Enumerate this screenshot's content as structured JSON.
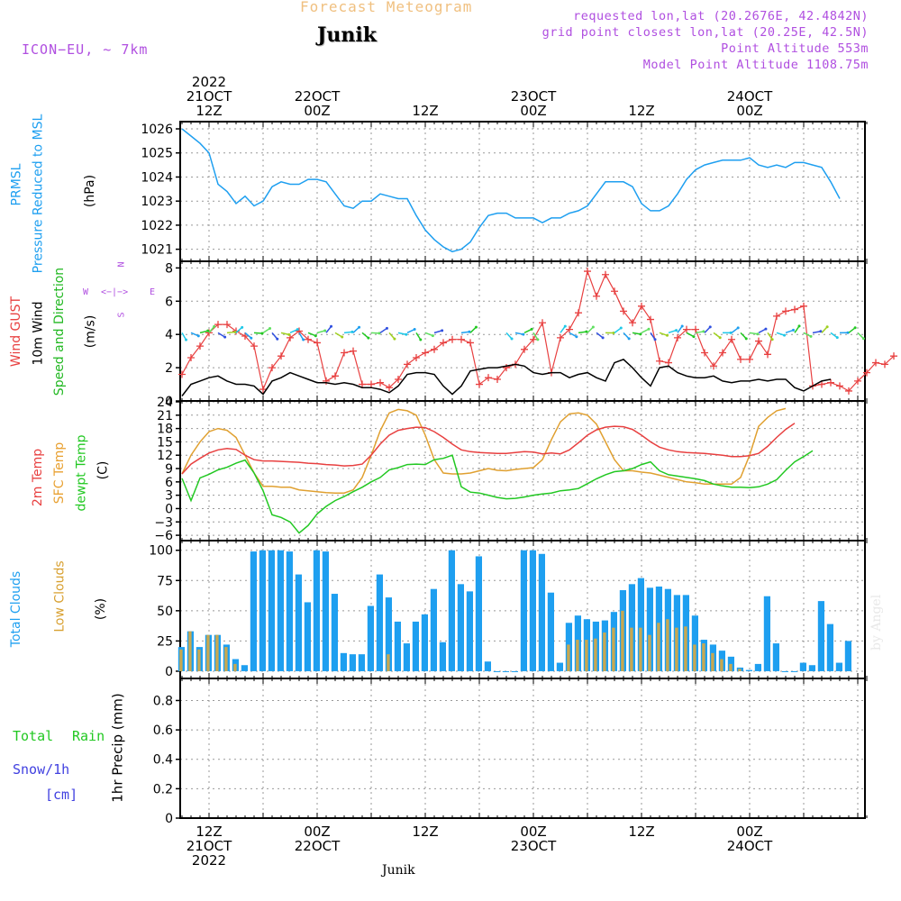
{
  "header": {
    "title": "Forecast Meteogram",
    "location": "Junik",
    "model": "ICON−EU, ~ 7km",
    "requested": "requested lon,lat (20.2676E, 42.4842N)",
    "grid_point": "grid point closest lon,lat (20.25E, 42.5N)",
    "point_altitude": "Point Altitude 553m",
    "model_altitude": "Model Point Altitude 1108.75m",
    "byline": "by Angel",
    "footer_location": "Junik"
  },
  "time_axis": {
    "top_labels": [
      {
        "hour": 3,
        "lines": [
          "2022",
          "21OCT",
          "12Z"
        ]
      },
      {
        "hour": 15,
        "lines": [
          "22OCT",
          "00Z"
        ]
      },
      {
        "hour": 27,
        "lines": [
          "12Z"
        ]
      },
      {
        "hour": 39,
        "lines": [
          "23OCT",
          "00Z"
        ]
      },
      {
        "hour": 51,
        "lines": [
          "12Z"
        ]
      },
      {
        "hour": 63,
        "lines": [
          "24OCT",
          "00Z"
        ]
      }
    ],
    "bottom_labels": [
      {
        "hour": 3,
        "lines": [
          "12Z",
          "21OCT",
          "2022"
        ]
      },
      {
        "hour": 15,
        "lines": [
          "00Z",
          "22OCT"
        ]
      },
      {
        "hour": 27,
        "lines": [
          "12Z"
        ]
      },
      {
        "hour": 39,
        "lines": [
          "00Z",
          "23OCT"
        ]
      },
      {
        "hour": 51,
        "lines": [
          "12Z"
        ]
      },
      {
        "hour": 63,
        "lines": [
          "00Z",
          "24OCT"
        ]
      }
    ]
  },
  "panel_labels": {
    "pressure": [
      {
        "text": "PRMSL",
        "color": "#1e9ff0"
      },
      {
        "text": "Pressure Reduced to MSL",
        "color": "#1e9ff0"
      },
      {
        "text": "(hPa)",
        "color": "#000000"
      }
    ],
    "wind": [
      {
        "text": "Wind GUST",
        "color": "#e84040"
      },
      {
        "text": "10m Wind",
        "color": "#000000"
      },
      {
        "text": "Speed and Direction",
        "color": "#22b822"
      },
      {
        "text": "(m/s)",
        "color": "#000000"
      }
    ],
    "compass": {
      "n": "N",
      "s": "S",
      "w": "W",
      "e": "E",
      "arrow": "<−|−>"
    },
    "temp": [
      {
        "text": "2m Temp",
        "color": "#e84040"
      },
      {
        "text": "SFC Temp",
        "color": "#e8a030"
      },
      {
        "text": "dewpt Temp",
        "color": "#22c822"
      },
      {
        "text": "(C)",
        "color": "#000000"
      }
    ],
    "cloud": [
      {
        "text": "Total Clouds",
        "color": "#1e9ff0"
      },
      {
        "text": "Low Clouds",
        "color": "#d8a030"
      },
      {
        "text": "(%)",
        "color": "#000000"
      }
    ],
    "precip": {
      "total": "Total",
      "rain": "Rain",
      "snow": "Snow/1h",
      "cm": "[cm]",
      "axis": "1hr Precip (mm)"
    }
  },
  "colors": {
    "pressure": "#1e9ff0",
    "gust": "#e84040",
    "wind": "#000000",
    "t2m": "#e84040",
    "tsfc": "#e0a030",
    "dewpt": "#22c822",
    "total_clouds": "#1e9ff0",
    "low_clouds": "#c8a850",
    "grid": "#999999"
  },
  "chart_data": [
    {
      "type": "line",
      "name": "pressure",
      "x_unit": "hours from 21OCT 09Z",
      "ylabel": "(hPa)",
      "ylim": [
        1020.5,
        1026.3
      ],
      "yticks": [
        1021,
        1022,
        1023,
        1024,
        1025,
        1026
      ],
      "series": [
        {
          "name": "PRMSL",
          "values": [
            1026.0,
            1025.7,
            1025.4,
            1025.0,
            1023.7,
            1023.4,
            1022.9,
            1023.2,
            1022.8,
            1023.0,
            1023.6,
            1023.8,
            1023.7,
            1023.7,
            1023.9,
            1023.9,
            1023.8,
            1023.3,
            1022.8,
            1022.7,
            1023.0,
            1023.0,
            1023.3,
            1023.2,
            1023.1,
            1023.1,
            1022.4,
            1021.8,
            1021.4,
            1021.1,
            1020.9,
            1021.0,
            1021.3,
            1021.9,
            1022.4,
            1022.5,
            1022.5,
            1022.3,
            1022.3,
            1022.3,
            1022.1,
            1022.3,
            1022.3,
            1022.5,
            1022.6,
            1022.8,
            1023.3,
            1023.8,
            1023.8,
            1023.8,
            1023.6,
            1022.9,
            1022.6,
            1022.6,
            1022.8,
            1023.3,
            1023.9,
            1024.3,
            1024.5,
            1024.6,
            1024.7,
            1024.7,
            1024.7,
            1024.8,
            1024.5,
            1024.4,
            1024.5,
            1024.4,
            1024.6,
            1024.6,
            1024.5,
            1024.4,
            1023.8,
            1023.1
          ]
        }
      ]
    },
    {
      "type": "line",
      "name": "wind",
      "x_unit": "hours from 21OCT 09Z",
      "ylabel": "(m/s)",
      "ylim": [
        0,
        8.4
      ],
      "yticks": [
        0,
        2,
        4,
        6,
        8
      ],
      "series": [
        {
          "name": "Wind GUST",
          "values": [
            1.6,
            2.6,
            3.3,
            4.1,
            4.6,
            4.6,
            4.2,
            3.9,
            3.3,
            0.7,
            2.0,
            2.7,
            3.8,
            4.2,
            3.7,
            3.5,
            1.2,
            1.5,
            2.9,
            3.0,
            1.0,
            1.0,
            1.1,
            0.8,
            1.3,
            2.2,
            2.6,
            2.9,
            3.1,
            3.5,
            3.7,
            3.7,
            3.5,
            1.0,
            1.4,
            1.3,
            2.0,
            2.2,
            3.1,
            3.7,
            4.7,
            1.7,
            3.8,
            4.3,
            5.3,
            7.8,
            6.3,
            7.6,
            6.6,
            5.4,
            4.7,
            5.7,
            4.9,
            2.4,
            2.3,
            3.8,
            4.3,
            4.3,
            2.9,
            2.1,
            2.9,
            3.7,
            2.5,
            2.5,
            3.6,
            2.8,
            5.1,
            5.4,
            5.5,
            5.7,
            0.9,
            1.0,
            1.1,
            0.9,
            0.6,
            1.2,
            1.7,
            2.3,
            2.2,
            2.7
          ]
        },
        {
          "name": "10m Wind",
          "values": [
            0.3,
            1.0,
            1.2,
            1.4,
            1.5,
            1.2,
            1.0,
            1.0,
            0.9,
            0.4,
            1.2,
            1.4,
            1.7,
            1.5,
            1.3,
            1.1,
            1.1,
            1.0,
            1.1,
            1.0,
            0.8,
            0.8,
            0.7,
            0.5,
            0.9,
            1.6,
            1.7,
            1.7,
            1.6,
            0.9,
            0.4,
            0.9,
            1.8,
            1.9,
            2.0,
            2.0,
            2.1,
            2.2,
            2.1,
            1.7,
            1.6,
            1.7,
            1.7,
            1.4,
            1.6,
            1.7,
            1.4,
            1.2,
            2.3,
            2.5,
            2.0,
            1.4,
            0.9,
            2.0,
            2.1,
            1.7,
            1.5,
            1.4,
            1.4,
            1.5,
            1.2,
            1.1,
            1.2,
            1.2,
            1.3,
            1.2,
            1.3,
            1.3,
            0.8,
            0.6,
            0.9,
            1.2,
            1.3
          ]
        }
      ]
    },
    {
      "type": "line",
      "name": "temperature",
      "x_unit": "hours from 21OCT 09Z",
      "ylabel": "(C)",
      "ylim": [
        -7.2,
        24.2
      ],
      "yticks": [
        -6,
        -3,
        0,
        3,
        6,
        9,
        12,
        15,
        18,
        21,
        24
      ],
      "series": [
        {
          "name": "2m Temp",
          "values": [
            7.8,
            10.0,
            11.3,
            12.5,
            13.2,
            13.5,
            13.3,
            12.0,
            11.0,
            10.7,
            10.7,
            10.6,
            10.5,
            10.4,
            10.2,
            10.1,
            9.9,
            9.8,
            9.6,
            9.7,
            10.0,
            12.0,
            14.5,
            16.5,
            17.6,
            18.0,
            18.3,
            18.2,
            17.3,
            16.0,
            14.5,
            13.2,
            12.8,
            12.6,
            12.5,
            12.4,
            12.4,
            12.6,
            12.8,
            12.7,
            12.3,
            12.5,
            12.3,
            13.2,
            14.8,
            16.5,
            17.7,
            18.3,
            18.5,
            18.4,
            17.8,
            16.5,
            15.0,
            13.8,
            13.2,
            12.8,
            12.6,
            12.5,
            12.4,
            12.2,
            12.0,
            11.7,
            11.7,
            11.9,
            12.4,
            14.0,
            16.0,
            17.8,
            19.2
          ]
        },
        {
          "name": "SFC Temp",
          "values": [
            7.8,
            12.0,
            15.0,
            17.3,
            18.0,
            17.6,
            16.0,
            12.0,
            8.0,
            5.0,
            5.0,
            4.8,
            4.8,
            4.2,
            4.0,
            3.8,
            3.6,
            3.5,
            3.5,
            4.2,
            7.0,
            12.0,
            17.5,
            21.5,
            22.3,
            22.0,
            21.0,
            16.5,
            11.0,
            8.0,
            7.8,
            7.8,
            8.0,
            8.5,
            9.0,
            8.6,
            8.5,
            8.8,
            9.0,
            9.2,
            11.0,
            15.5,
            19.5,
            21.3,
            21.5,
            21.0,
            19.0,
            15.0,
            11.0,
            8.5,
            8.5,
            8.2,
            8.0,
            7.5,
            7.0,
            6.5,
            6.0,
            5.8,
            5.5,
            5.5,
            5.5,
            5.5,
            7.0,
            12.0,
            18.5,
            20.5,
            22.0,
            22.5
          ]
        },
        {
          "name": "dewpt Temp",
          "values": [
            6.8,
            1.8,
            6.9,
            7.7,
            8.7,
            9.3,
            10.2,
            10.9,
            8.0,
            4.0,
            -1.4,
            -2.0,
            -3.0,
            -5.5,
            -3.8,
            -1.2,
            0.5,
            1.8,
            2.7,
            3.8,
            4.8,
            6.0,
            7.0,
            8.7,
            9.2,
            9.9,
            10.0,
            9.9,
            11.0,
            11.3,
            12.0,
            4.9,
            3.7,
            3.5,
            3.0,
            2.5,
            2.2,
            2.3,
            2.6,
            3.0,
            3.3,
            3.5,
            4.0,
            4.2,
            4.5,
            5.6,
            6.7,
            7.6,
            8.3,
            8.5,
            9.0,
            9.9,
            10.5,
            8.5,
            7.6,
            7.3,
            7.0,
            6.7,
            6.3,
            5.5,
            5.1,
            4.8,
            4.8,
            4.7,
            4.9,
            5.5,
            6.5,
            8.6,
            10.5,
            11.7,
            13.0
          ]
        }
      ]
    },
    {
      "type": "bar",
      "name": "clouds",
      "x_unit": "hours from 21OCT 09Z",
      "ylabel": "(%)",
      "ylim": [
        -6,
        108
      ],
      "yticks": [
        0,
        25,
        50,
        75,
        100
      ],
      "series": [
        {
          "name": "Total Clouds",
          "values": [
            20,
            33,
            20,
            30,
            30,
            22,
            10,
            5,
            99,
            100,
            100,
            100,
            99,
            80,
            57,
            100,
            99,
            64,
            15,
            14,
            14,
            54,
            80,
            61,
            41,
            23,
            41,
            47,
            68,
            24,
            100,
            72,
            66,
            95,
            8,
            0,
            0,
            0,
            100,
            100,
            97,
            65,
            7,
            40,
            46,
            43,
            41,
            42,
            49,
            67,
            72,
            77,
            69,
            70,
            68,
            63,
            63,
            46,
            26,
            22,
            17,
            12,
            3,
            1,
            6,
            62,
            23,
            0,
            0,
            7,
            5,
            58,
            39,
            7,
            25
          ]
        },
        {
          "name": "Low Clouds",
          "values": [
            18,
            33,
            18,
            30,
            30,
            20,
            6,
            0,
            0,
            0,
            0,
            0,
            0,
            0,
            0,
            0,
            0,
            0,
            0,
            0,
            0,
            0,
            0,
            14,
            0,
            0,
            0,
            0,
            0,
            0,
            0,
            0,
            0,
            0,
            0,
            0,
            0,
            0,
            0,
            0,
            0,
            0,
            0,
            22,
            26,
            26,
            27,
            32,
            36,
            50,
            36,
            36,
            30,
            40,
            43,
            36,
            37,
            22,
            23,
            15,
            10,
            6,
            2,
            0,
            0,
            0,
            0,
            0,
            0,
            0,
            0,
            0,
            0,
            0,
            0
          ]
        }
      ]
    },
    {
      "type": "bar",
      "name": "precipitation",
      "x_unit": "hours from 21OCT 09Z",
      "ylabel": "1hr Precip (mm)",
      "ylim": [
        0,
        0.95
      ],
      "yticks": [
        0,
        0.2,
        0.4,
        0.6,
        0.8
      ],
      "series": [
        {
          "name": "Total Rain",
          "values": []
        },
        {
          "name": "Snow/1h",
          "values": []
        }
      ]
    }
  ]
}
